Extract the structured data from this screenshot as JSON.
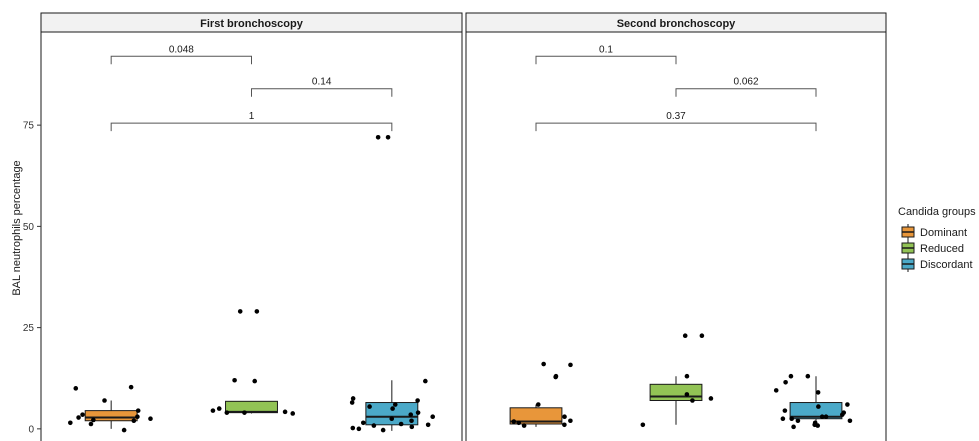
{
  "chart_data": {
    "type": "box",
    "ylabel": "BAL neutrophils percentage",
    "yticks": [
      0,
      25,
      50,
      75
    ],
    "ylim": [
      -3,
      98
    ],
    "legend": {
      "title": "Candida groups",
      "position": "right",
      "items": [
        {
          "label": "Dominant",
          "color": "#E8963A"
        },
        {
          "label": "Reduced",
          "color": "#92C355"
        },
        {
          "label": "Discordant",
          "color": "#4BA9C8"
        }
      ]
    },
    "panels": [
      {
        "title": "First bronchoscopy",
        "groups": [
          {
            "name": "Dominant",
            "color": "#E8963A",
            "box": {
              "min": 0,
              "q1": 2,
              "median": 2.8,
              "q3": 4.5,
              "max": 7
            },
            "points": [
              10.3,
              10,
              7,
              4.5,
              3.5,
              3,
              2.8,
              2.5,
              2.2,
              2,
              1.5,
              1.2,
              -0.3
            ]
          },
          {
            "name": "Reduced",
            "color": "#92C355",
            "box": {
              "min": 3.8,
              "q1": 4,
              "median": 4.2,
              "q3": 6.8,
              "max": 6.8
            },
            "points": [
              29,
              29,
              12,
              11.8,
              5,
              4.5,
              4.2,
              4,
              4,
              3.8
            ]
          },
          {
            "name": "Discordant",
            "color": "#4BA9C8",
            "box": {
              "min": -0.5,
              "q1": 1,
              "median": 3,
              "q3": 6.5,
              "max": 12
            },
            "points": [
              72,
              72,
              11.8,
              7.5,
              7,
              6.5,
              6,
              5.5,
              5,
              4,
              3.5,
              3,
              2.5,
              2,
              1.5,
              1.2,
              1,
              0.8,
              0.5,
              0.2,
              0,
              -0.3
            ]
          }
        ],
        "comparisons": [
          {
            "from": 0,
            "to": 1,
            "label": "0.048",
            "y": 92
          },
          {
            "from": 1,
            "to": 2,
            "label": "0.14",
            "y": 84
          },
          {
            "from": 0,
            "to": 2,
            "label": "1",
            "y": 75.5
          }
        ]
      },
      {
        "title": "Second bronchoscopy",
        "groups": [
          {
            "name": "Dominant",
            "color": "#E8963A",
            "box": {
              "min": 0.5,
              "q1": 1.2,
              "median": 1.8,
              "q3": 5.2,
              "max": 6
            },
            "points": [
              16,
              15.8,
              13,
              12.8,
              6,
              3,
              2,
              1.8,
              1.5,
              1,
              0.8
            ]
          },
          {
            "name": "Reduced",
            "color": "#92C355",
            "box": {
              "min": 1,
              "q1": 7,
              "median": 8,
              "q3": 11,
              "max": 13
            },
            "points": [
              23,
              23,
              13,
              8.5,
              7.5,
              7,
              1
            ]
          },
          {
            "name": "Discordant",
            "color": "#4BA9C8",
            "box": {
              "min": 0.5,
              "q1": 2.5,
              "median": 3,
              "q3": 6.5,
              "max": 13
            },
            "points": [
              13,
              13,
              11.5,
              9.5,
              9,
              6,
              5.5,
              4.5,
              4,
              3.5,
              3,
              3,
              2.5,
              2.5,
              2,
              2,
              1.5,
              1,
              0.8,
              0.5
            ]
          }
        ],
        "comparisons": [
          {
            "from": 0,
            "to": 1,
            "label": "0.1",
            "y": 92
          },
          {
            "from": 1,
            "to": 2,
            "label": "0.062",
            "y": 84
          },
          {
            "from": 0,
            "to": 2,
            "label": "0.37",
            "y": 75.5
          }
        ]
      }
    ]
  }
}
